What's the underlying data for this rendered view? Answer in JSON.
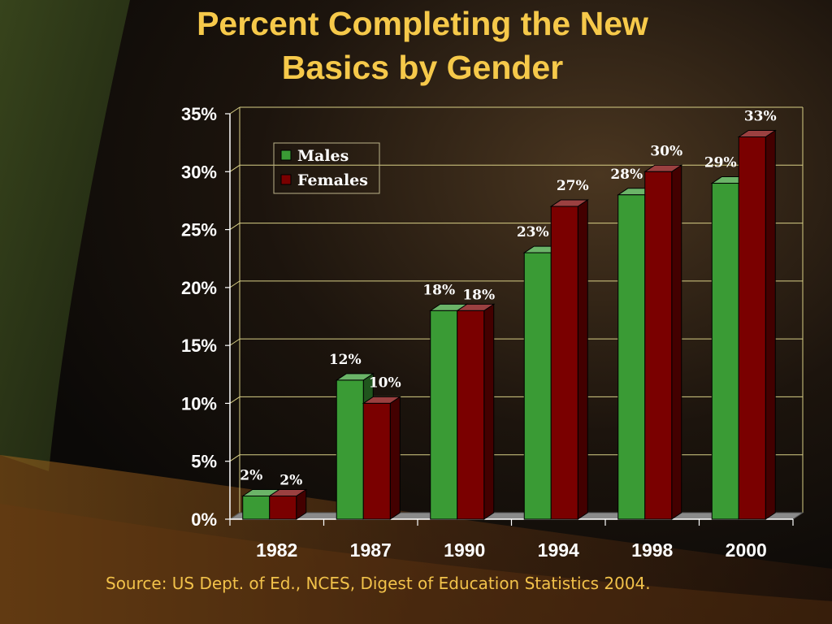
{
  "slide": {
    "title_line1": "Percent Completing the New",
    "title_line2": "Basics by Gender",
    "source": "Source: US Dept. of Ed., NCES, Digest of Education Statistics 2004."
  },
  "colors": {
    "title": "#f6c94a",
    "males": "#3a9b35",
    "females": "#7a0000",
    "axis_text": "#ffffff",
    "data_label": "#ffffff",
    "gridline": "#d8cf86"
  },
  "chart_data": {
    "type": "bar",
    "title": "Percent Completing the New Basics by Gender",
    "categories": [
      "1982",
      "1987",
      "1990",
      "1994",
      "1998",
      "2000"
    ],
    "series": [
      {
        "name": "Males",
        "values": [
          2,
          12,
          18,
          23,
          28,
          29
        ],
        "labels": [
          "2%",
          "12%",
          "18%",
          "23%",
          "28%",
          "29%"
        ]
      },
      {
        "name": "Females",
        "values": [
          2,
          10,
          18,
          27,
          30,
          33
        ],
        "labels": [
          "2%",
          "10%",
          "18%",
          "27%",
          "30%",
          "33%"
        ]
      }
    ],
    "ylim": [
      0,
      35
    ],
    "yticks": [
      0,
      5,
      10,
      15,
      20,
      25,
      30,
      35
    ],
    "ytick_labels": [
      "0%",
      "5%",
      "10%",
      "15%",
      "20%",
      "25%",
      "30%",
      "35%"
    ],
    "xlabel": "",
    "ylabel": "",
    "grid": true,
    "legend_position": "top-left",
    "style": "3d-clustered-bar"
  }
}
